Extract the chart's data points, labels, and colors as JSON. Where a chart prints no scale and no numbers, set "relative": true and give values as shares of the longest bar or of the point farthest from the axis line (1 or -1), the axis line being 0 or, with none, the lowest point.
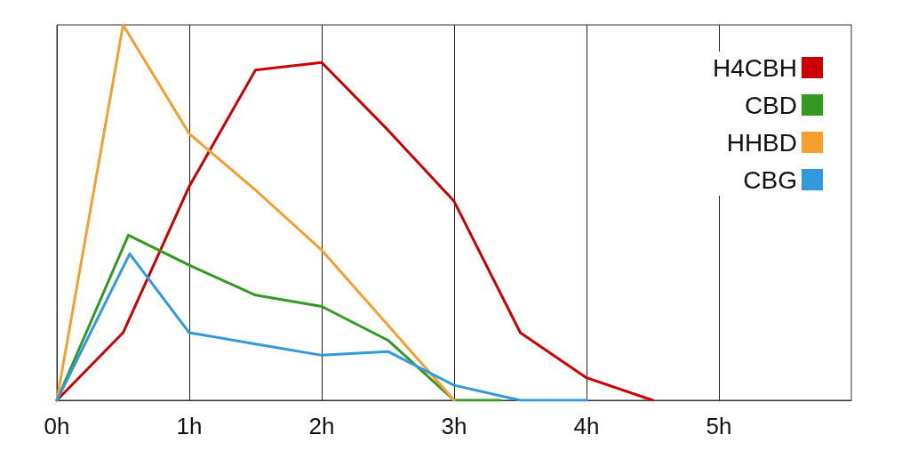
{
  "chart_data": {
    "type": "line",
    "relative": true,
    "xlim": [
      0,
      6
    ],
    "xticks": [
      {
        "value": 0,
        "label": "0h"
      },
      {
        "value": 1,
        "label": "1h"
      },
      {
        "value": 2,
        "label": "2h"
      },
      {
        "value": 3,
        "label": "3h"
      },
      {
        "value": 4,
        "label": "4h"
      },
      {
        "value": 5,
        "label": "5h"
      }
    ],
    "grid": "x",
    "legend": "top right",
    "marker": "none",
    "line_style": "solid",
    "series": [
      {
        "name": "H4CBH",
        "color": "#cc0000",
        "x": [
          0,
          0.5,
          1,
          1.5,
          2,
          2.5,
          3,
          3.5,
          4,
          4.5
        ],
        "values": [
          0,
          0.18,
          0.57,
          0.88,
          0.9,
          0.72,
          0.53,
          0.18,
          0.06,
          0
        ]
      },
      {
        "name": "CBD",
        "color": "#339922",
        "x": [
          0,
          0.54,
          1,
          1.5,
          2,
          2.5,
          3,
          3.35
        ],
        "values": [
          0,
          0.44,
          0.36,
          0.28,
          0.25,
          0.16,
          0,
          0
        ]
      },
      {
        "name": "HHBD",
        "color": "#f4a030",
        "x": [
          0,
          0.5,
          1,
          1.5,
          2,
          2.5,
          3
        ],
        "values": [
          0,
          1,
          0.71,
          0.56,
          0.4,
          0.2,
          0
        ]
      },
      {
        "name": "CBG",
        "color": "#3399dd",
        "x": [
          0,
          0.55,
          1,
          1.5,
          2,
          2.5,
          3,
          3.5,
          4
        ],
        "values": [
          0,
          0.39,
          0.18,
          0.15,
          0.12,
          0.13,
          0.04,
          0,
          0
        ]
      }
    ]
  }
}
